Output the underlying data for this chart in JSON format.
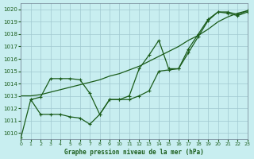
{
  "title": "Graphe pression niveau de la mer (hPa)",
  "bg_color": "#c8eef0",
  "grid_color": "#a0c8d0",
  "line_color": "#1a5c1a",
  "xlim": [
    0,
    23
  ],
  "ylim": [
    1009.5,
    1020.5
  ],
  "yticks": [
    1010,
    1011,
    1012,
    1013,
    1014,
    1015,
    1016,
    1017,
    1018,
    1019,
    1020
  ],
  "xticks": [
    0,
    1,
    2,
    3,
    4,
    5,
    6,
    7,
    8,
    9,
    10,
    11,
    12,
    13,
    14,
    15,
    16,
    17,
    18,
    19,
    20,
    21,
    22,
    23
  ],
  "series1_x": [
    0,
    1,
    2,
    3,
    4,
    5,
    6,
    7,
    8,
    9,
    10,
    11,
    12,
    13,
    14,
    15,
    16,
    17,
    18,
    19,
    20,
    21,
    22,
    23
  ],
  "series1_y": [
    1013.0,
    1013.0,
    1013.1,
    1013.3,
    1013.5,
    1013.7,
    1013.9,
    1014.1,
    1014.3,
    1014.6,
    1014.8,
    1015.1,
    1015.4,
    1015.8,
    1016.2,
    1016.6,
    1017.0,
    1017.5,
    1017.9,
    1018.4,
    1019.0,
    1019.4,
    1019.7,
    1019.9
  ],
  "series2_x": [
    0,
    1,
    2,
    3,
    4,
    5,
    6,
    7,
    8,
    9,
    10,
    11,
    12,
    13,
    14,
    15,
    16,
    17,
    18,
    19,
    20,
    21,
    22,
    23
  ],
  "series2_y": [
    1009.6,
    1012.7,
    1011.5,
    1011.5,
    1011.5,
    1011.3,
    1011.2,
    1010.7,
    1011.5,
    1012.7,
    1012.7,
    1012.7,
    1013.0,
    1013.4,
    1015.0,
    1015.1,
    1015.2,
    1016.5,
    1017.8,
    1019.1,
    1019.8,
    1019.7,
    1019.5,
    1019.8
  ],
  "series3_x": [
    1,
    2,
    3,
    4,
    5,
    6,
    7,
    8,
    9,
    10,
    11,
    12,
    13,
    14,
    15,
    16,
    17,
    18,
    19,
    20,
    21,
    22,
    23
  ],
  "series3_y": [
    1012.7,
    1012.9,
    1014.4,
    1014.4,
    1014.4,
    1014.3,
    1013.2,
    1011.5,
    1012.7,
    1012.7,
    1013.0,
    1015.2,
    1016.3,
    1017.5,
    1015.2,
    1015.2,
    1016.8,
    1018.0,
    1019.2,
    1019.8,
    1019.8,
    1019.6,
    1019.9
  ]
}
